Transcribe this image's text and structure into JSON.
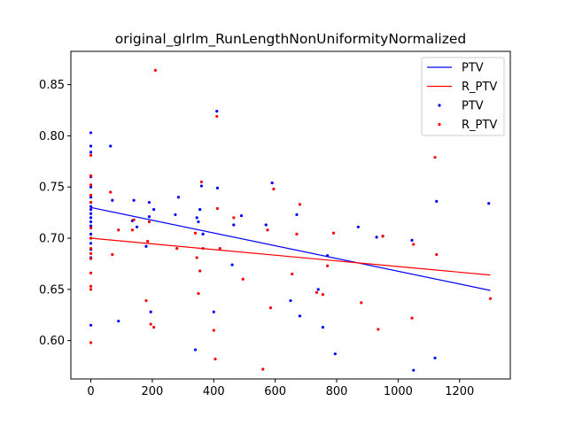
{
  "chart_data": {
    "type": "scatter",
    "title": "original_glrlm_RunLengthNonUniformityNormalized",
    "xlabel": "",
    "ylabel": "",
    "xlim": [
      -65,
      1365
    ],
    "ylim": [
      0.5625,
      0.8825
    ],
    "x_ticks": [
      0,
      200,
      400,
      600,
      800,
      1000,
      1200
    ],
    "y_ticks": [
      0.6,
      0.65,
      0.7,
      0.75,
      0.8,
      0.85
    ],
    "x_tick_labels": [
      "0",
      "200",
      "400",
      "600",
      "800",
      "1000",
      "1200"
    ],
    "y_tick_labels": [
      "0.60",
      "0.65",
      "0.70",
      "0.75",
      "0.80",
      "0.85"
    ],
    "legend_position": "top-right",
    "colors": {
      "PTV": "#0000ff",
      "R_PTV": "#ff0000"
    },
    "fit_lines": [
      {
        "name": "PTV",
        "x": [
          0,
          1300
        ],
        "y": [
          0.73,
          0.649
        ]
      },
      {
        "name": "R_PTV",
        "x": [
          0,
          1300
        ],
        "y": [
          0.7,
          0.664
        ]
      }
    ],
    "series": [
      {
        "name": "PTV",
        "points": [
          [
            0,
            0.803
          ],
          [
            0,
            0.79
          ],
          [
            0,
            0.784
          ],
          [
            0,
            0.76
          ],
          [
            0,
            0.75
          ],
          [
            0,
            0.74
          ],
          [
            0,
            0.735
          ],
          [
            0,
            0.731
          ],
          [
            0,
            0.728
          ],
          [
            0,
            0.724
          ],
          [
            0,
            0.72
          ],
          [
            0,
            0.716
          ],
          [
            0,
            0.712
          ],
          [
            0,
            0.704
          ],
          [
            0,
            0.7
          ],
          [
            0,
            0.695
          ],
          [
            0,
            0.689
          ],
          [
            0,
            0.681
          ],
          [
            0,
            0.615
          ],
          [
            64,
            0.79
          ],
          [
            70,
            0.737
          ],
          [
            90,
            0.619
          ],
          [
            135,
            0.717
          ],
          [
            140,
            0.737
          ],
          [
            150,
            0.711
          ],
          [
            180,
            0.692
          ],
          [
            190,
            0.721
          ],
          [
            190,
            0.735
          ],
          [
            195,
            0.628
          ],
          [
            205,
            0.728
          ],
          [
            275,
            0.723
          ],
          [
            285,
            0.74
          ],
          [
            340,
            0.591
          ],
          [
            345,
            0.72
          ],
          [
            350,
            0.716
          ],
          [
            355,
            0.728
          ],
          [
            360,
            0.751
          ],
          [
            365,
            0.704
          ],
          [
            400,
            0.628
          ],
          [
            410,
            0.824
          ],
          [
            412,
            0.749
          ],
          [
            460,
            0.674
          ],
          [
            465,
            0.713
          ],
          [
            490,
            0.722
          ],
          [
            570,
            0.713
          ],
          [
            590,
            0.754
          ],
          [
            650,
            0.639
          ],
          [
            670,
            0.723
          ],
          [
            680,
            0.624
          ],
          [
            740,
            0.65
          ],
          [
            755,
            0.613
          ],
          [
            770,
            0.683
          ],
          [
            795,
            0.587
          ],
          [
            870,
            0.711
          ],
          [
            930,
            0.701
          ],
          [
            950,
            0.702
          ],
          [
            1045,
            0.698
          ],
          [
            1050,
            0.571
          ],
          [
            1120,
            0.583
          ],
          [
            1125,
            0.736
          ],
          [
            1295,
            0.734
          ]
        ]
      },
      {
        "name": "R_PTV",
        "points": [
          [
            0,
            0.781
          ],
          [
            0,
            0.761
          ],
          [
            0,
            0.752
          ],
          [
            0,
            0.742
          ],
          [
            0,
            0.735
          ],
          [
            0,
            0.71
          ],
          [
            0,
            0.7
          ],
          [
            0,
            0.69
          ],
          [
            0,
            0.685
          ],
          [
            0,
            0.68
          ],
          [
            0,
            0.666
          ],
          [
            0,
            0.653
          ],
          [
            0,
            0.65
          ],
          [
            0,
            0.598
          ],
          [
            64,
            0.745
          ],
          [
            70,
            0.684
          ],
          [
            90,
            0.708
          ],
          [
            135,
            0.708
          ],
          [
            140,
            0.718
          ],
          [
            180,
            0.639
          ],
          [
            185,
            0.697
          ],
          [
            190,
            0.716
          ],
          [
            195,
            0.616
          ],
          [
            205,
            0.613
          ],
          [
            210,
            0.864
          ],
          [
            280,
            0.69
          ],
          [
            340,
            0.705
          ],
          [
            345,
            0.681
          ],
          [
            350,
            0.646
          ],
          [
            355,
            0.668
          ],
          [
            360,
            0.755
          ],
          [
            365,
            0.69
          ],
          [
            400,
            0.61
          ],
          [
            405,
            0.582
          ],
          [
            410,
            0.819
          ],
          [
            412,
            0.729
          ],
          [
            420,
            0.69
          ],
          [
            465,
            0.72
          ],
          [
            495,
            0.66
          ],
          [
            560,
            0.572
          ],
          [
            575,
            0.708
          ],
          [
            585,
            0.632
          ],
          [
            595,
            0.748
          ],
          [
            655,
            0.665
          ],
          [
            670,
            0.704
          ],
          [
            680,
            0.733
          ],
          [
            735,
            0.647
          ],
          [
            755,
            0.645
          ],
          [
            770,
            0.673
          ],
          [
            790,
            0.705
          ],
          [
            880,
            0.637
          ],
          [
            935,
            0.611
          ],
          [
            950,
            0.702
          ],
          [
            1045,
            0.622
          ],
          [
            1050,
            0.694
          ],
          [
            1120,
            0.779
          ],
          [
            1125,
            0.684
          ],
          [
            1300,
            0.641
          ]
        ]
      }
    ],
    "legend": [
      {
        "label": "PTV",
        "kind": "line",
        "color": "#0000ff"
      },
      {
        "label": "R_PTV",
        "kind": "line",
        "color": "#ff0000"
      },
      {
        "label": "PTV",
        "kind": "marker",
        "color": "#0000ff"
      },
      {
        "label": "R_PTV",
        "kind": "marker",
        "color": "#ff0000"
      }
    ]
  }
}
